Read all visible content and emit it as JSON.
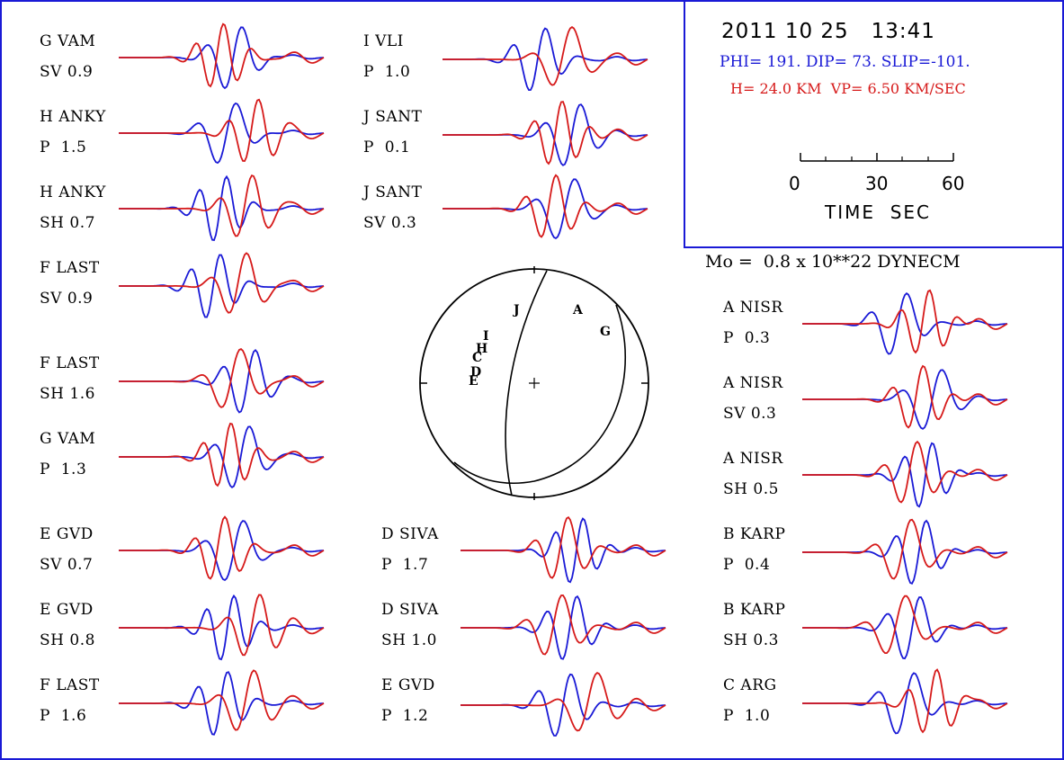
{
  "header": {
    "date": "2011 10 25",
    "time": "13:41",
    "mechanism": "PHI= 191. DIP= 73. SLIP=-101.",
    "depth_velocity": "H= 24.0 KM  VP= 6.50 KM/SEC",
    "time_scale": {
      "ticks": [
        "0",
        "30",
        "60"
      ],
      "label": "TIME  SEC"
    },
    "moment": "Mo =  0.8 x 10**22 DYNECM"
  },
  "colors": {
    "observed": "#1a1ad6",
    "synthetic": "#d61a1a",
    "frame": "#1a1ad6"
  },
  "waveforms": [
    {
      "station": "G VAM",
      "phase": "SV",
      "amp": "0.9",
      "seed": 1
    },
    {
      "station": "H ANKY",
      "phase": "P",
      "amp": "1.5",
      "seed": 2
    },
    {
      "station": "H ANKY",
      "phase": "SH",
      "amp": "0.7",
      "seed": 3
    },
    {
      "station": "F LAST",
      "phase": "SV",
      "amp": "0.9",
      "seed": 4
    },
    {
      "station": "F LAST",
      "phase": "SH",
      "amp": "1.6",
      "seed": 5
    },
    {
      "station": "G VAM",
      "phase": "P",
      "amp": "1.3",
      "seed": 6
    },
    {
      "station": "E GVD",
      "phase": "SV",
      "amp": "0.7",
      "seed": 7
    },
    {
      "station": "E GVD",
      "phase": "SH",
      "amp": "0.8",
      "seed": 8
    },
    {
      "station": "F LAST",
      "phase": "P",
      "amp": "1.6",
      "seed": 9
    },
    {
      "station": "I VLI",
      "phase": "P",
      "amp": "1.0",
      "seed": 10
    },
    {
      "station": "J SANT",
      "phase": "P",
      "amp": "0.1",
      "seed": 11
    },
    {
      "station": "J SANT",
      "phase": "SV",
      "amp": "0.3",
      "seed": 12
    },
    {
      "station": "D SIVA",
      "phase": "P",
      "amp": "1.7",
      "seed": 13
    },
    {
      "station": "D SIVA",
      "phase": "SH",
      "amp": "1.0",
      "seed": 14
    },
    {
      "station": "E GVD",
      "phase": "P",
      "amp": "1.2",
      "seed": 15
    },
    {
      "station": "A NISR",
      "phase": "P",
      "amp": "0.3",
      "seed": 16
    },
    {
      "station": "A NISR",
      "phase": "SV",
      "amp": "0.3",
      "seed": 17
    },
    {
      "station": "A NISR",
      "phase": "SH",
      "amp": "0.5",
      "seed": 18
    },
    {
      "station": "B KARP",
      "phase": "P",
      "amp": "0.4",
      "seed": 19
    },
    {
      "station": "B KARP",
      "phase": "SH",
      "amp": "0.3",
      "seed": 20
    },
    {
      "station": "C ARG",
      "phase": "P",
      "amp": "1.0",
      "seed": 21
    }
  ],
  "focal_sphere_stations": [
    "J",
    "A",
    "G",
    "I",
    "H",
    "C",
    "D",
    "E"
  ]
}
